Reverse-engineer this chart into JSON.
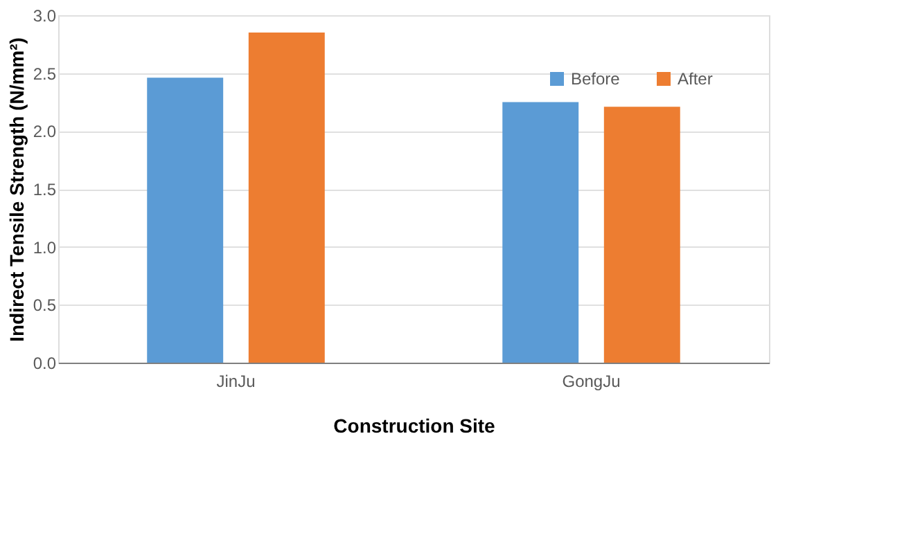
{
  "chart_data": {
    "type": "bar",
    "xlabel": "Construction Site",
    "ylabel": "Indirect Tensile Strength (N/mm²)",
    "categories": [
      "JinJu",
      "GongJu"
    ],
    "series": [
      {
        "name": "Before",
        "color": "#5b9bd5",
        "values": [
          2.46,
          2.25
        ]
      },
      {
        "name": "After",
        "color": "#ed7d31",
        "values": [
          2.85,
          2.21
        ]
      }
    ],
    "ylim": [
      0,
      3.0
    ],
    "yticks": [
      {
        "value": 0,
        "label": "0.0"
      },
      {
        "value": 0.5,
        "label": "0.5"
      },
      {
        "value": 1.0,
        "label": "1.0"
      },
      {
        "value": 1.5,
        "label": "1.5"
      },
      {
        "value": 2.0,
        "label": "2.0"
      },
      {
        "value": 2.5,
        "label": "2.5"
      },
      {
        "value": 3.0,
        "label": "3.0"
      }
    ],
    "grid": "y",
    "legend": "top right"
  }
}
